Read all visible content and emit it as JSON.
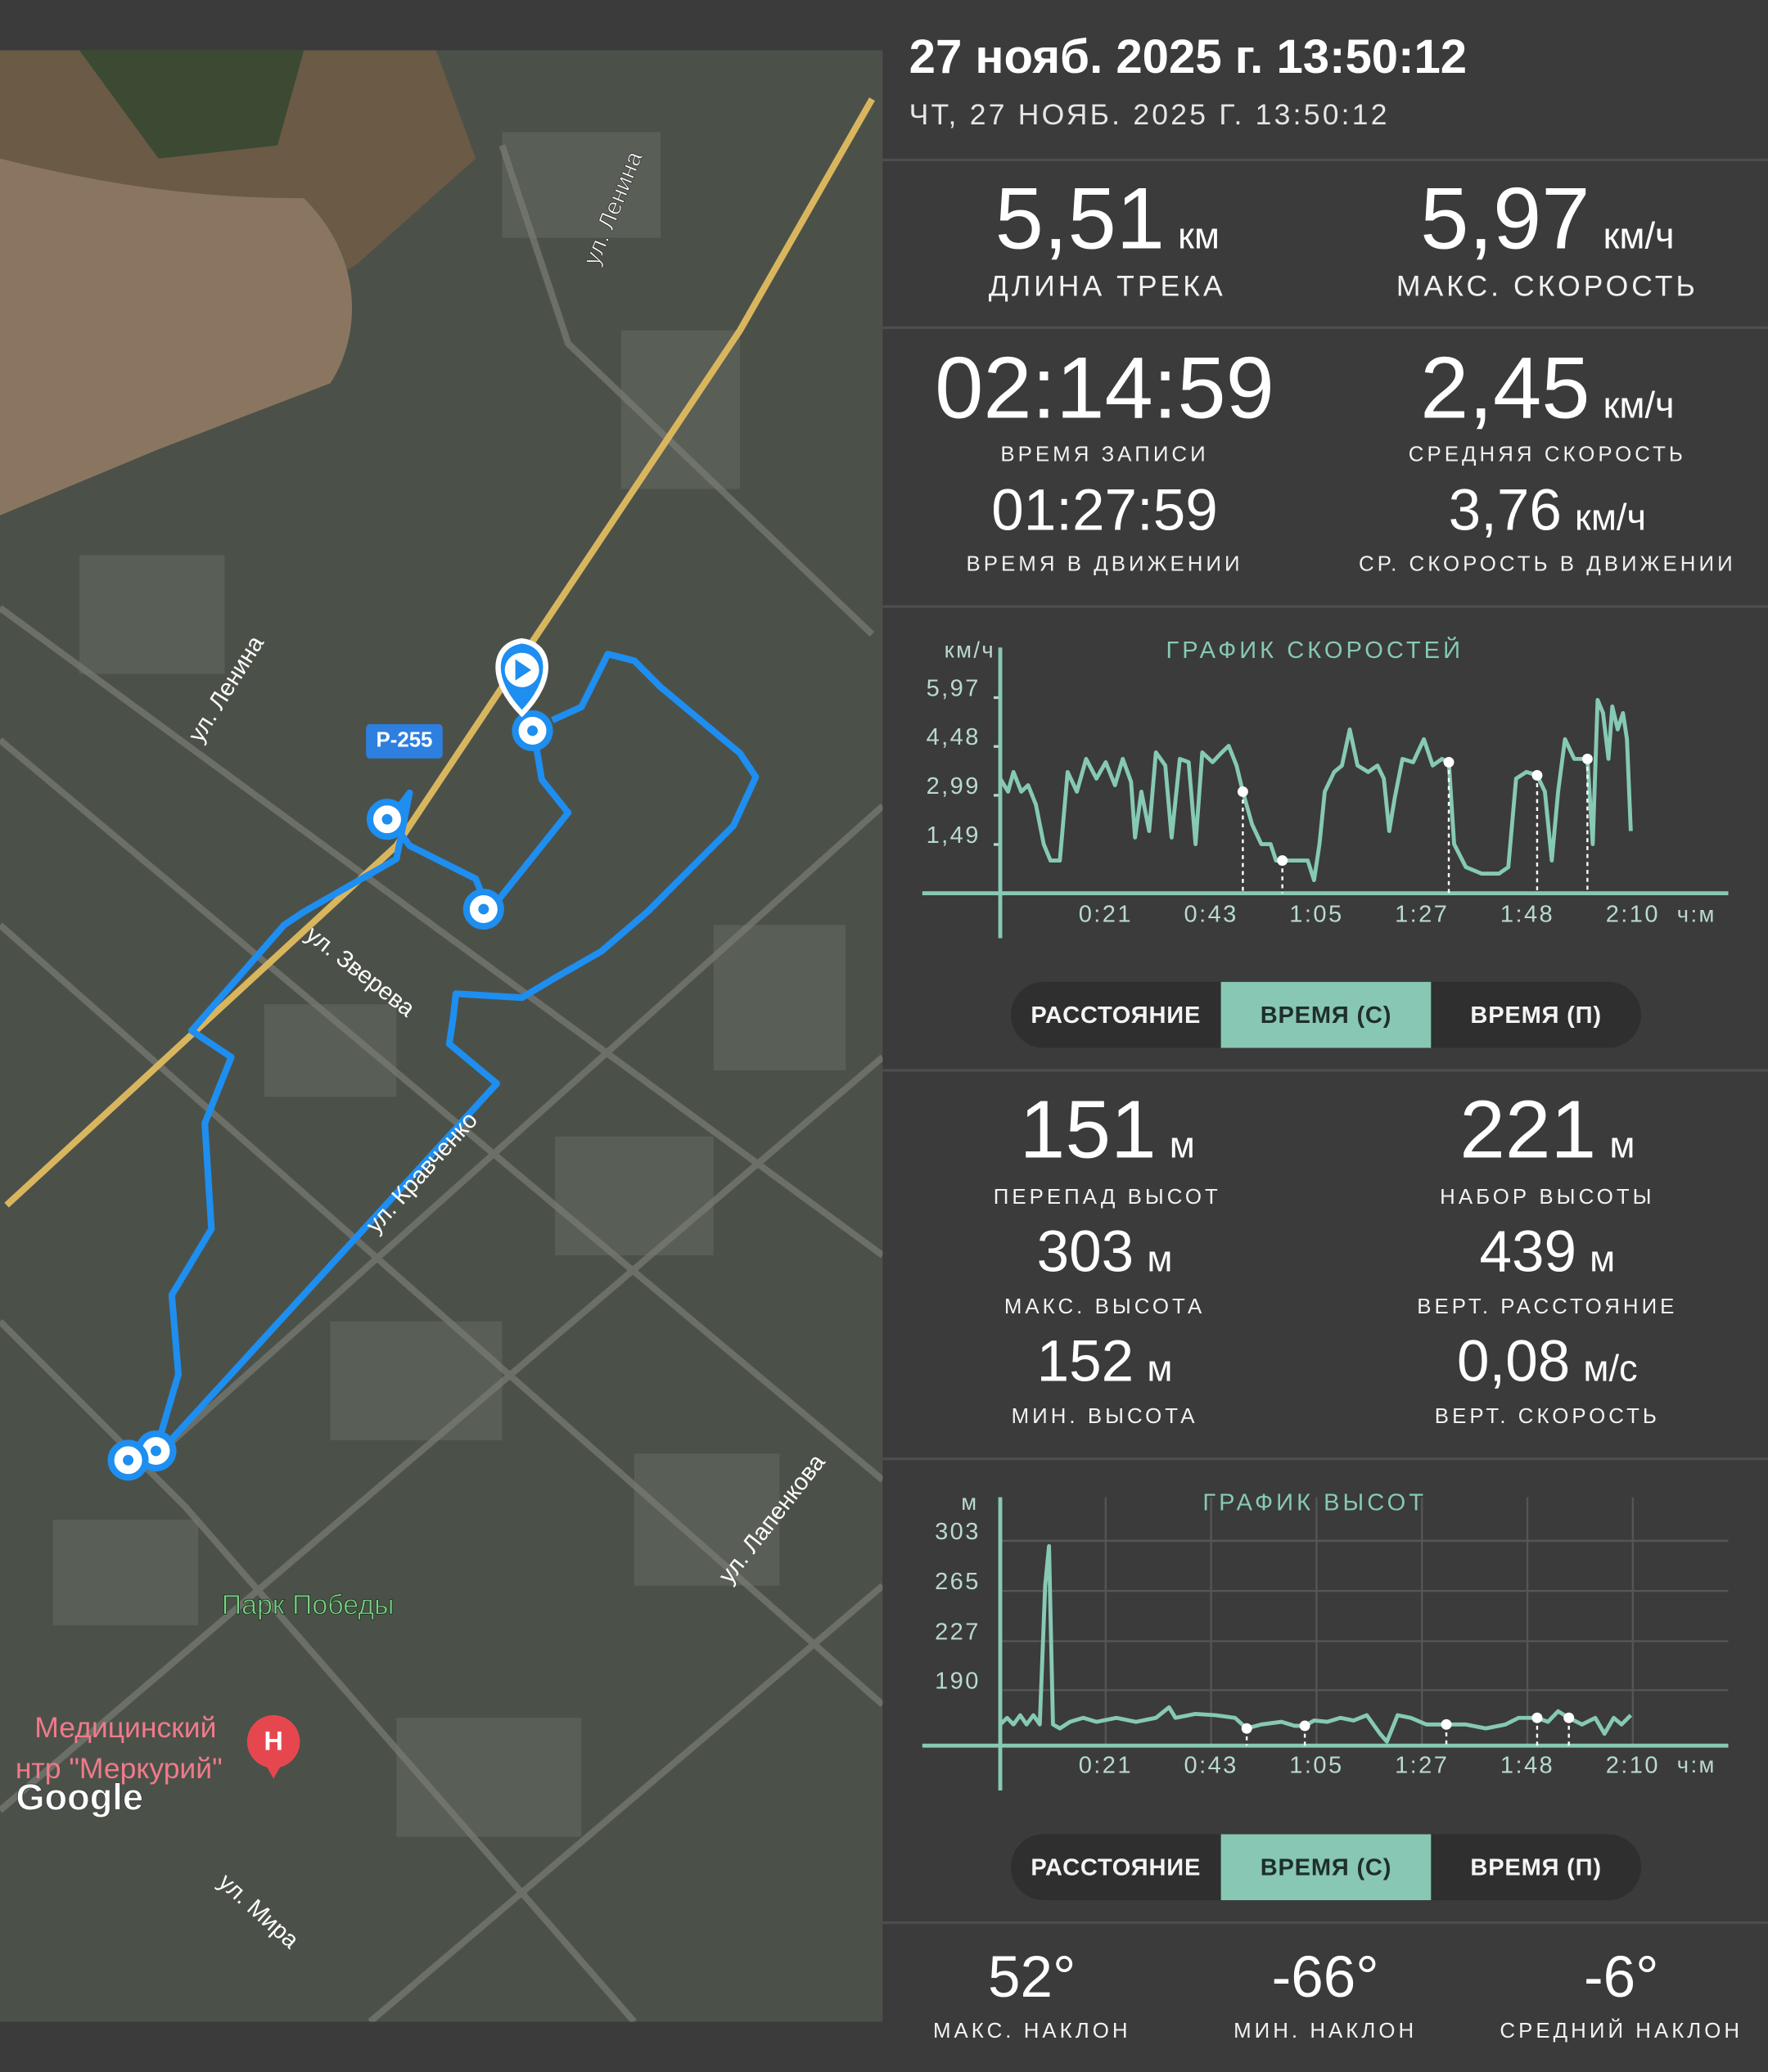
{
  "header": {
    "title": "27 нояб. 2025 г. 13:50:12",
    "subtitle": "ЧТ, 27 НОЯБ. 2025 Г. 13:50:12"
  },
  "map": {
    "labels": [
      "ул. Ленина",
      "ул. Ленина",
      "Р-255",
      "ул. Зверева",
      "ул. Кравченко",
      "ул. Лапенкова",
      "Парк Победы",
      "Медицинский",
      "нтр \"Меркурий\"",
      "Google",
      "ул. Мира"
    ]
  },
  "stats": [
    {
      "value": "5,51",
      "unit": "км",
      "label": "ДЛИНА ТРЕКА"
    },
    {
      "value": "5,97",
      "unit": "км/ч",
      "label": "МАКС. СКОРОСТЬ"
    },
    {
      "value": "02:14:59",
      "label": "ВРЕМЯ ЗАПИСИ"
    },
    {
      "value": "2,45",
      "unit": "км/ч",
      "label": "СРЕДНЯЯ СКОРОСТЬ"
    },
    {
      "value": "01:27:59",
      "label": "ВРЕМЯ В ДВИЖЕНИИ"
    },
    {
      "value": "3,76",
      "unit": "км/ч",
      "label": "СР. СКОРОСТЬ В ДВИЖЕНИИ"
    },
    {
      "value": "151",
      "unit": "м",
      "label": "ПЕРЕПАД ВЫСОТ"
    },
    {
      "value": "221",
      "unit": "м",
      "label": "НАБОР ВЫСОТЫ"
    },
    {
      "value": "303",
      "unit": "м",
      "label": "МАКС. ВЫСОТА"
    },
    {
      "value": "439",
      "unit": "м",
      "label": "ВЕРТ. РАССТОЯНИЕ"
    },
    {
      "value": "152",
      "unit": "м",
      "label": "МИН. ВЫСОТА"
    },
    {
      "value": "0,08",
      "unit": "м/с",
      "label": "ВЕРТ. СКОРОСТЬ"
    },
    {
      "value": "52°",
      "label": "МАКС. НАКЛОН"
    },
    {
      "value": "-66°",
      "label": "МИН. НАКЛОН"
    },
    {
      "value": "-6°",
      "label": "СРЕДНИЙ НАКЛОН"
    }
  ],
  "toggles": [
    [
      "РАССТОЯНИЕ",
      "ВРЕМЯ (С)",
      "ВРЕМЯ (П)"
    ],
    [
      "РАССТОЯНИЕ",
      "ВРЕМЯ (С)",
      "ВРЕМЯ (П)"
    ]
  ],
  "chart_data": [
    {
      "type": "line",
      "title": "ГРАФИК СКОРОСТЕЙ",
      "y_label": "км/ч",
      "x_label": "ч:м",
      "color": "#86c9b5",
      "grid": false,
      "xlim": [
        0,
        147
      ],
      "ylim": [
        0,
        7.5
      ],
      "xticks": [
        {
          "value": 21.6,
          "label": "0:21"
        },
        {
          "value": 43.2,
          "label": "0:43"
        },
        {
          "value": 64.8,
          "label": "1:05"
        },
        {
          "value": 86.4,
          "label": "1:27"
        },
        {
          "value": 108,
          "label": "1:48"
        },
        {
          "value": 129.6,
          "label": "2:10"
        }
      ],
      "yticks": [
        {
          "value": 1.49,
          "label": "1,49"
        },
        {
          "value": 2.99,
          "label": "2,99"
        },
        {
          "value": 4.48,
          "label": "4,48"
        },
        {
          "value": 5.97,
          "label": "5,97"
        }
      ],
      "x": [
        0,
        1.6,
        2.7,
        4.3,
        5.7,
        7.3,
        8.9,
        10.3,
        12.2,
        13.8,
        15.7,
        17.6,
        19.7,
        21.6,
        23.5,
        25.1,
        26.8,
        27.6,
        28.9,
        30.5,
        31.9,
        33.8,
        35.1,
        36.8,
        38.6,
        40.0,
        41.4,
        43.5,
        45.4,
        46.8,
        48.4,
        49.7,
        51.6,
        53.5,
        55.4,
        56.5,
        57.8,
        60.3,
        63.0,
        64.3,
        65.4,
        66.5,
        68.4,
        70.0,
        71.6,
        73.2,
        75.4,
        77.3,
        78.6,
        79.7,
        80.8,
        82.4,
        84.6,
        86.8,
        88.6,
        90.5,
        91.9,
        93.0,
        95.4,
        98.6,
        102.2,
        104.1,
        105.7,
        107.8,
        110.0,
        111.6,
        113.0,
        114.3,
        115.7,
        117.6,
        120.3,
        121.4,
        122.4,
        123.5,
        124.6,
        125.4,
        126.5,
        127.6,
        128.4,
        129.2
      ],
      "values": [
        3.5,
        3.1,
        3.7,
        3.1,
        3.3,
        2.7,
        1.5,
        1.0,
        1.0,
        3.7,
        3.1,
        4.1,
        3.5,
        4.0,
        3.3,
        4.1,
        3.4,
        1.7,
        3.1,
        1.9,
        4.3,
        3.9,
        1.7,
        4.1,
        4.0,
        1.5,
        4.3,
        4.0,
        4.3,
        4.5,
        3.9,
        3.1,
        2.1,
        1.5,
        1.5,
        1.0,
        1.0,
        1.0,
        1.0,
        0.4,
        1.5,
        3.1,
        3.7,
        3.9,
        5.0,
        3.9,
        3.7,
        3.9,
        3.5,
        1.9,
        2.9,
        4.1,
        4.0,
        4.7,
        3.9,
        4.1,
        4.0,
        1.5,
        0.8,
        0.6,
        0.6,
        0.8,
        3.5,
        3.7,
        3.6,
        3.1,
        1.0,
        3.1,
        4.7,
        4.1,
        4.1,
        1.5,
        5.9,
        5.5,
        4.1,
        5.7,
        5.0,
        5.5,
        4.7,
        1.9
      ],
      "markers": {
        "x": [
          49.7,
          57.8,
          91.9,
          110.0,
          120.3
        ],
        "values": [
          3.1,
          1.0,
          4.0,
          3.6,
          4.1
        ]
      }
    },
    {
      "type": "line",
      "title": "ГРАФИК ВЫСОТ",
      "y_label": "м",
      "x_label": "ч:м",
      "color": "#86c9b5",
      "grid": true,
      "xlim": [
        0,
        147
      ],
      "ylim": [
        148,
        336
      ],
      "xticks": [
        {
          "value": 21.6,
          "label": "0:21"
        },
        {
          "value": 43.2,
          "label": "0:43"
        },
        {
          "value": 64.8,
          "label": "1:05"
        },
        {
          "value": 86.4,
          "label": "1:27"
        },
        {
          "value": 108,
          "label": "1:48"
        },
        {
          "value": 129.6,
          "label": "2:10"
        }
      ],
      "yticks": [
        190,
        227,
        265,
        303
      ],
      "x": [
        0,
        1.4,
        2.7,
        4.1,
        5.4,
        6.8,
        8.1,
        9.2,
        10.0,
        10.8,
        12.2,
        14.3,
        17.0,
        19.7,
        23.8,
        27.8,
        31.9,
        34.6,
        35.9,
        40.0,
        44.1,
        48.1,
        50.5,
        53.5,
        57.6,
        60.3,
        62.4,
        64.3,
        67.0,
        69.7,
        72.4,
        75.1,
        77.8,
        79.2,
        81.4,
        84.1,
        87.3,
        91.4,
        95.4,
        99.5,
        103.5,
        106.2,
        110.0,
        112.2,
        114.3,
        116.5,
        119.2,
        121.9,
        123.8,
        125.7,
        127.3,
        129.2
      ],
      "values": [
        164,
        169,
        164,
        171,
        164,
        171,
        164,
        269,
        299,
        164,
        161,
        166,
        169,
        166,
        169,
        166,
        169,
        177,
        169,
        172,
        171,
        169,
        161,
        164,
        166,
        163,
        163,
        167,
        166,
        169,
        167,
        171,
        157,
        151,
        171,
        169,
        164,
        164,
        164,
        161,
        164,
        169,
        169,
        166,
        174,
        169,
        164,
        169,
        157,
        169,
        164,
        171
      ],
      "markers": {
        "x": [
          50.5,
          62.4,
          91.4,
          110.0,
          116.5
        ],
        "values": [
          161,
          163,
          164,
          169,
          169
        ]
      }
    }
  ]
}
